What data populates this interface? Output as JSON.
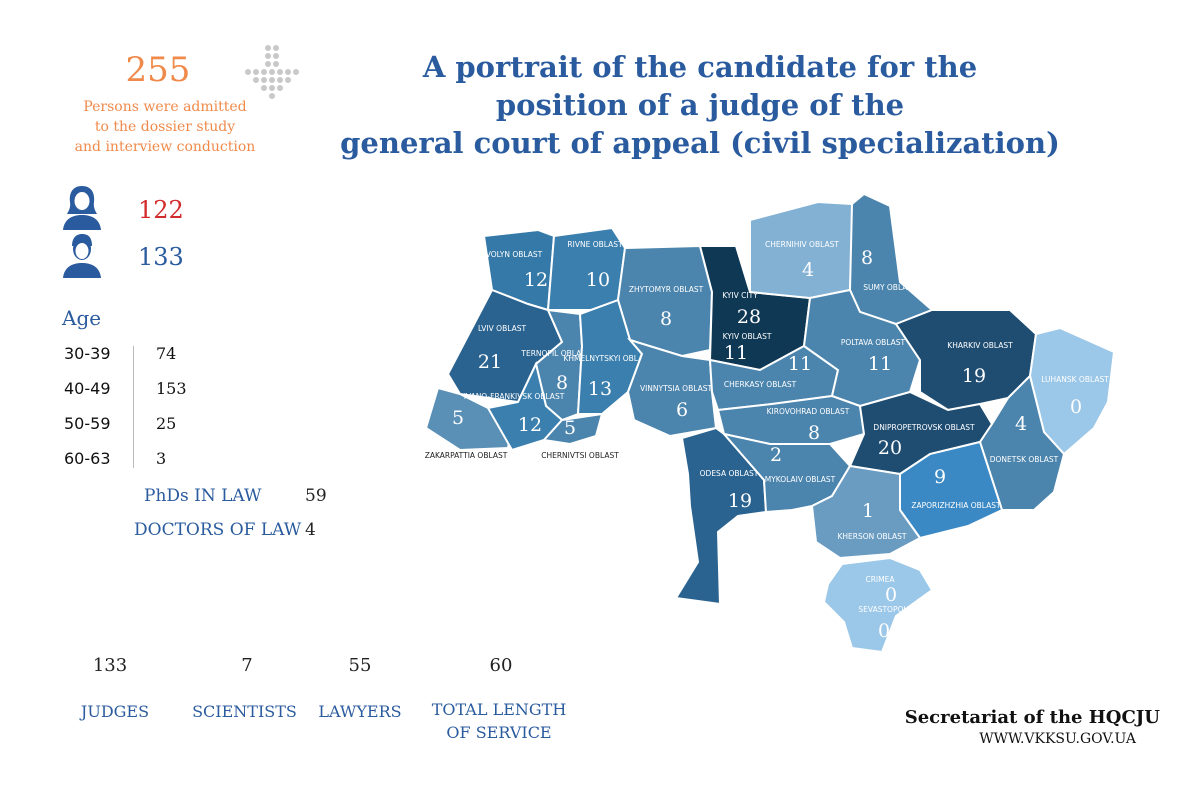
{
  "title": {
    "line1": "A portrait of the candidate for the",
    "line2": "position of a judge of the",
    "line3": "general court of appeal (civil specialization)"
  },
  "total": {
    "value": "255",
    "desc_lines": [
      "Persons were  admitted",
      "to the dossier study",
      "and interview conduction"
    ]
  },
  "gender": {
    "female": "122",
    "male": "133",
    "female_icon": "female-person-icon",
    "male_icon": "male-person-icon"
  },
  "age": {
    "label": "Age",
    "rows": [
      {
        "range": "30-39",
        "count": "74"
      },
      {
        "range": "40-49",
        "count": "153"
      },
      {
        "range": "50-59",
        "count": "25"
      },
      {
        "range": "60-63",
        "count": "3"
      }
    ]
  },
  "degrees": [
    {
      "label": "PhDs IN LAW",
      "value": "59"
    },
    {
      "label": "DOCTORS OF LAW",
      "value": "4"
    }
  ],
  "stats": [
    {
      "value": "133",
      "label": "JUDGES"
    },
    {
      "value": "7",
      "label": "SCIENTISTS"
    },
    {
      "value": "55",
      "label": "LAWYERS"
    },
    {
      "value": "60",
      "label": "TOTAL LENGTH OF SERVICE"
    }
  ],
  "footer": {
    "org": "Secretariat of the HQCJU",
    "url": "WWW.VKKSU.GOV.UA"
  },
  "colors": {
    "orange": "#f08a4b",
    "blue": "#2a5b9e",
    "red": "#d22b2b"
  },
  "regions": [
    {
      "name": "VOLYN OBLAST",
      "value": "12"
    },
    {
      "name": "RIVNE OBLAST",
      "value": "10"
    },
    {
      "name": "ZHYTOMYR OBLAST",
      "value": "8"
    },
    {
      "name": "KYIV CITY",
      "value": "28"
    },
    {
      "name": "KYIV OBLAST",
      "value": "11"
    },
    {
      "name": "CHERNIHIV OBLAST",
      "value": "4"
    },
    {
      "name": "SUMY OBLAST",
      "value": "8"
    },
    {
      "name": "LVIV OBLAST",
      "value": "21"
    },
    {
      "name": "TERNOPIL OBLAST",
      "value": "8"
    },
    {
      "name": "KHMELNYTSKYI OBLAST",
      "value": "13"
    },
    {
      "name": "VINNYTSIA OBLAST",
      "value": "6"
    },
    {
      "name": "CHERKASY OBLAST",
      "value": "11"
    },
    {
      "name": "POLTAVA OBLAST",
      "value": "11"
    },
    {
      "name": "KHARKIV OBLAST",
      "value": "19"
    },
    {
      "name": "LUHANSK OBLAST",
      "value": "0"
    },
    {
      "name": "ZAKARPATTIA OBLAST",
      "value": "5"
    },
    {
      "name": "IVANO-FRANKIVSK OBLAST",
      "value": "12"
    },
    {
      "name": "CHERNIVTSI OBLAST",
      "value": "5"
    },
    {
      "name": "KIROVOHRAD OBLAST",
      "value": "8"
    },
    {
      "name": "DNIPROPETROVSK OBLAST",
      "value": "20"
    },
    {
      "name": "DONETSK OBLAST",
      "value": "4"
    },
    {
      "name": "ODESA OBLAST",
      "value": "19"
    },
    {
      "name": "MYKOLAIV OBLAST",
      "value": "2"
    },
    {
      "name": "ZAPORIZHZHIA OBLAST",
      "value": "9"
    },
    {
      "name": "KHERSON OBLAST",
      "value": "1"
    },
    {
      "name": "CRIMEA",
      "value": "0"
    },
    {
      "name": "SEVASTOPOL",
      "value": "0"
    }
  ]
}
